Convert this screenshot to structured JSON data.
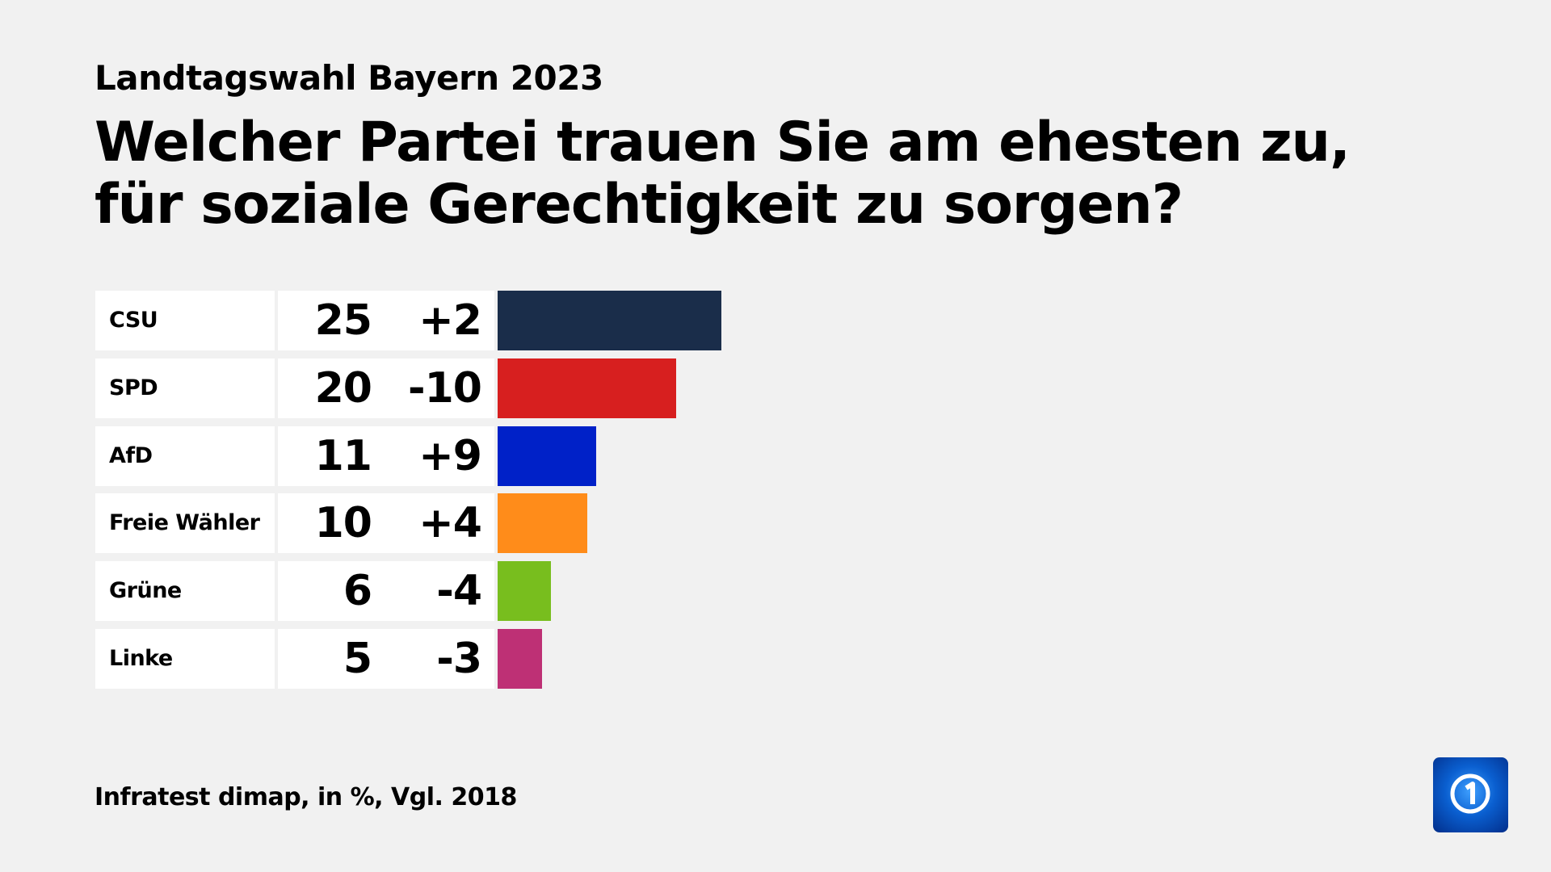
{
  "header": {
    "subtitle": "Landtagswahl Bayern 2023",
    "title": "Welcher Partei trauen Sie am ehesten zu, für soziale Gerechtigkeit zu sorgen?"
  },
  "footer": {
    "source": "Infratest dimap, in %, Vgl. 2018"
  },
  "logo": {
    "name": "tagesschau-ard-1-logo",
    "text": "1"
  },
  "chart_data": {
    "type": "bar",
    "orientation": "horizontal",
    "title": "Welcher Partei trauen Sie am ehesten zu, für soziale Gerechtigkeit zu sorgen?",
    "categories": [
      "CSU",
      "SPD",
      "AfD",
      "Freie Wähler",
      "Grüne",
      "Linke"
    ],
    "values": [
      25,
      20,
      11,
      10,
      6,
      5
    ],
    "change_labels": [
      "+2",
      "-10",
      "+9",
      "+4",
      "-4",
      "-3"
    ],
    "value_labels": [
      "25",
      "20",
      "11",
      "10",
      "6",
      "5"
    ],
    "colors": [
      "#1a2d4a",
      "#d71f1f",
      "#0021c8",
      "#ff8c1a",
      "#78be1e",
      "#be3075"
    ],
    "unit": "%"
  }
}
